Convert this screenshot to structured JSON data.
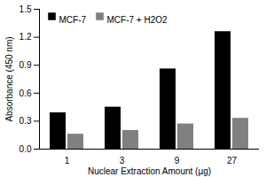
{
  "chart_data": {
    "type": "bar",
    "categories": [
      1,
      3,
      9,
      27
    ],
    "series": [
      {
        "name": "MCF-7",
        "color": "#000000",
        "values": [
          0.39,
          0.45,
          0.86,
          1.26
        ]
      },
      {
        "name": "MCF-7 + H2O2",
        "color": "#808080",
        "values": [
          0.16,
          0.2,
          0.27,
          0.33
        ]
      }
    ],
    "x_label": "Nuclear Extraction Amount (µg)",
    "y_label": "Absorbance (450 nm)",
    "ylim": [
      0,
      1.5
    ],
    "yticks": [
      {
        "value": 0,
        "label": "0.0"
      },
      0.3,
      0.6,
      0.9,
      1.2,
      1.5
    ],
    "grid": false,
    "legend": "top-left"
  }
}
